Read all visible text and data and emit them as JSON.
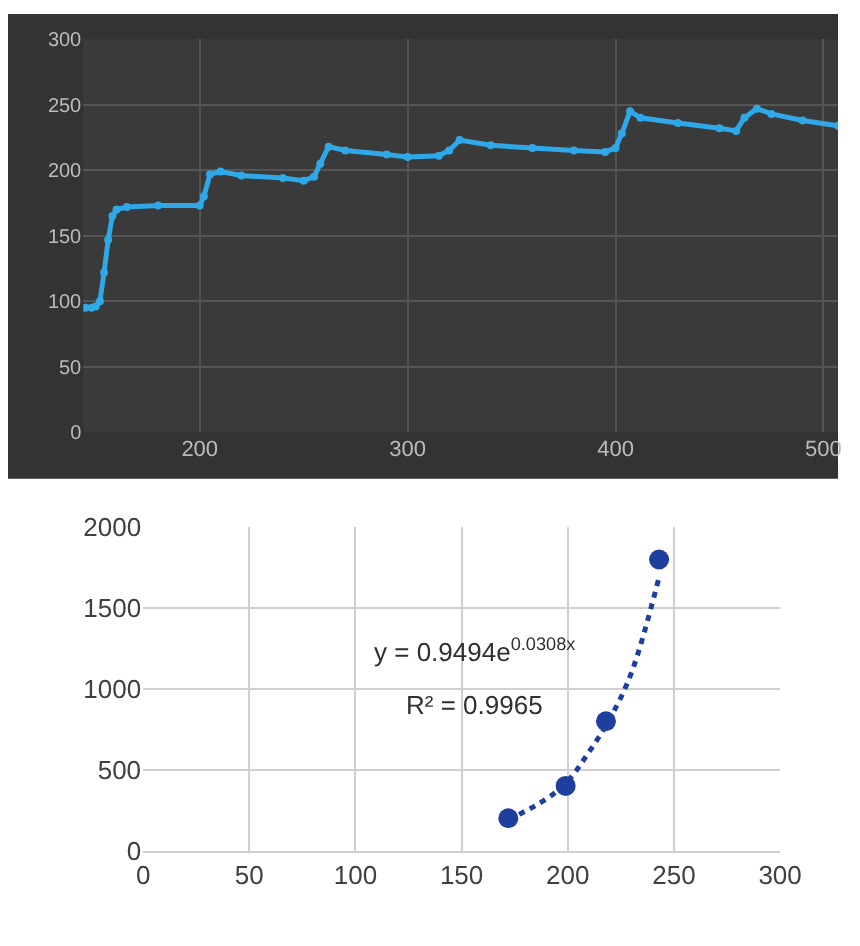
{
  "chart_data": [
    {
      "type": "line",
      "x": [
        145,
        148,
        150,
        152,
        154,
        156,
        158,
        160,
        165,
        180,
        200,
        202,
        205,
        210,
        220,
        240,
        250,
        255,
        258,
        262,
        270,
        290,
        300,
        315,
        320,
        325,
        340,
        360,
        380,
        395,
        400,
        403,
        407,
        412,
        430,
        450,
        458,
        462,
        468,
        475,
        490,
        507
      ],
      "series": [
        {
          "color": "#2fa8e8",
          "values": [
            95,
            95,
            96,
            100,
            122,
            147,
            165,
            170,
            172,
            173,
            173,
            180,
            197,
            199,
            196,
            194,
            192,
            195,
            205,
            218,
            215,
            212,
            210,
            211,
            215,
            223,
            219,
            217,
            215,
            214,
            217,
            228,
            245,
            240,
            236,
            232,
            230,
            240,
            247,
            243,
            238,
            234
          ]
        }
      ],
      "xlim": [
        144,
        507
      ],
      "xticks": [
        200,
        300,
        400,
        500
      ],
      "ylim": [
        0,
        300
      ],
      "yticks": [
        0,
        50,
        100,
        150,
        200,
        250,
        300
      ],
      "grid": true,
      "marker": "circle",
      "line_style": "solid",
      "legend": false
    },
    {
      "type": "scatter",
      "x": [
        172,
        199,
        218,
        243
      ],
      "series": [
        {
          "color": "#1f3f9f",
          "values": [
            200,
            400,
            800,
            1800
          ],
          "marker": "circle"
        },
        {
          "type": "line",
          "color": "#1f3f9f",
          "x": [
            172,
            190,
            200,
            210,
            220,
            230,
            243
          ],
          "values": [
            190,
            320,
            430,
            610,
            820,
            1100,
            1690
          ],
          "line_style": "dotted",
          "marker": "none"
        }
      ],
      "annotations": [
        "y = 0.9494e$^{0.0308x}$",
        "R² = 0.9965"
      ],
      "xlim": [
        0,
        300
      ],
      "xticks": [
        0,
        50,
        100,
        150,
        200,
        250,
        300
      ],
      "ylim": [
        0,
        2000
      ],
      "yticks": [
        0,
        500,
        1000,
        1500,
        2000
      ],
      "grid": true,
      "legend": false
    }
  ]
}
